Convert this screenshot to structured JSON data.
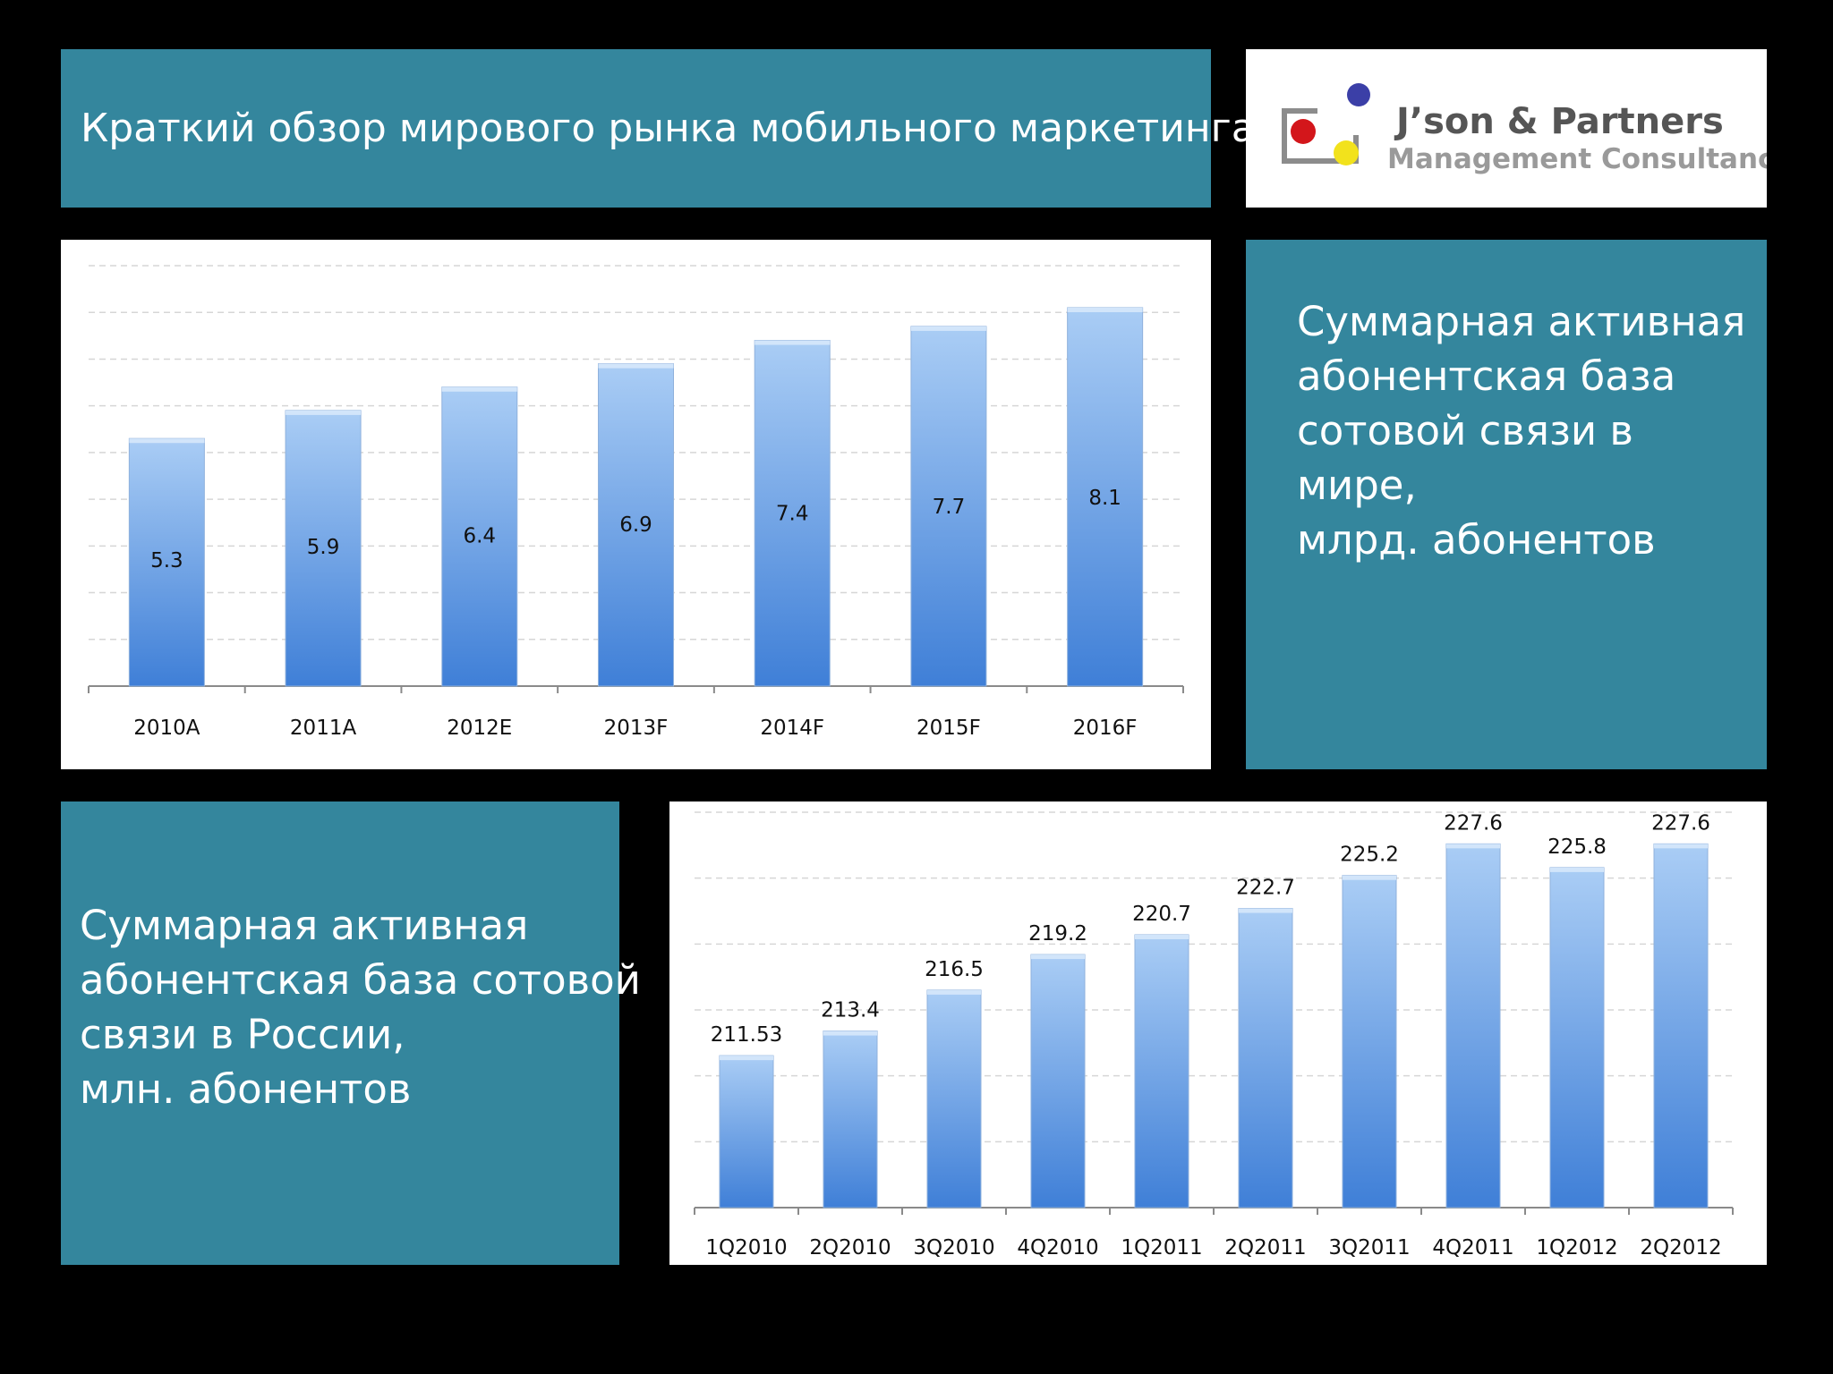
{
  "slide": {
    "title": "Краткий обзор мирового рынка мобильного маркетинга",
    "logo": {
      "name": "J’son & Partners",
      "tagline": "Management Consultancy"
    },
    "world_description": [
      "Суммарная активная",
      "абонентская база",
      "сотовой связи в",
      "мире,",
      "млрд. абонентов"
    ],
    "russia_description": [
      "Суммарная активная",
      "абонентская база сотовой",
      "связи в России,",
      "млн. абонентов"
    ]
  },
  "colors": {
    "panel_teal": "#34869d",
    "bar_top": "#aacdf5",
    "bar_bottom": "#3f7fd7",
    "grid": "#d6d6d6"
  },
  "chart_data": [
    {
      "type": "bar",
      "categories": [
        "2010A",
        "2011A",
        "2012E",
        "2013F",
        "2014F",
        "2015F",
        "2016F"
      ],
      "values": [
        5.3,
        5.9,
        6.4,
        6.9,
        7.4,
        7.7,
        8.1
      ],
      "value_labels": [
        "5.3",
        "5.9",
        "6.4",
        "6.9",
        "7.4",
        "7.7",
        "8.1"
      ],
      "label_position": "inside",
      "ylim": [
        0,
        9
      ],
      "grid": true,
      "gridlines": 9
    },
    {
      "type": "bar",
      "categories": [
        "1Q2010",
        "2Q2010",
        "3Q2010",
        "4Q2010",
        "1Q2011",
        "2Q2011",
        "3Q2011",
        "4Q2011",
        "1Q2012",
        "2Q2012"
      ],
      "values": [
        211.53,
        213.4,
        216.5,
        219.2,
        220.7,
        222.7,
        225.2,
        227.6,
        225.8,
        227.6
      ],
      "value_labels": [
        "211.53",
        "213.4",
        "216.5",
        "219.2",
        "220.7",
        "222.7",
        "225.2",
        "227.6",
        "225.8",
        "227.6"
      ],
      "label_position": "above",
      "ylim": [
        200,
        230
      ],
      "grid": true,
      "gridlines": 6
    }
  ]
}
